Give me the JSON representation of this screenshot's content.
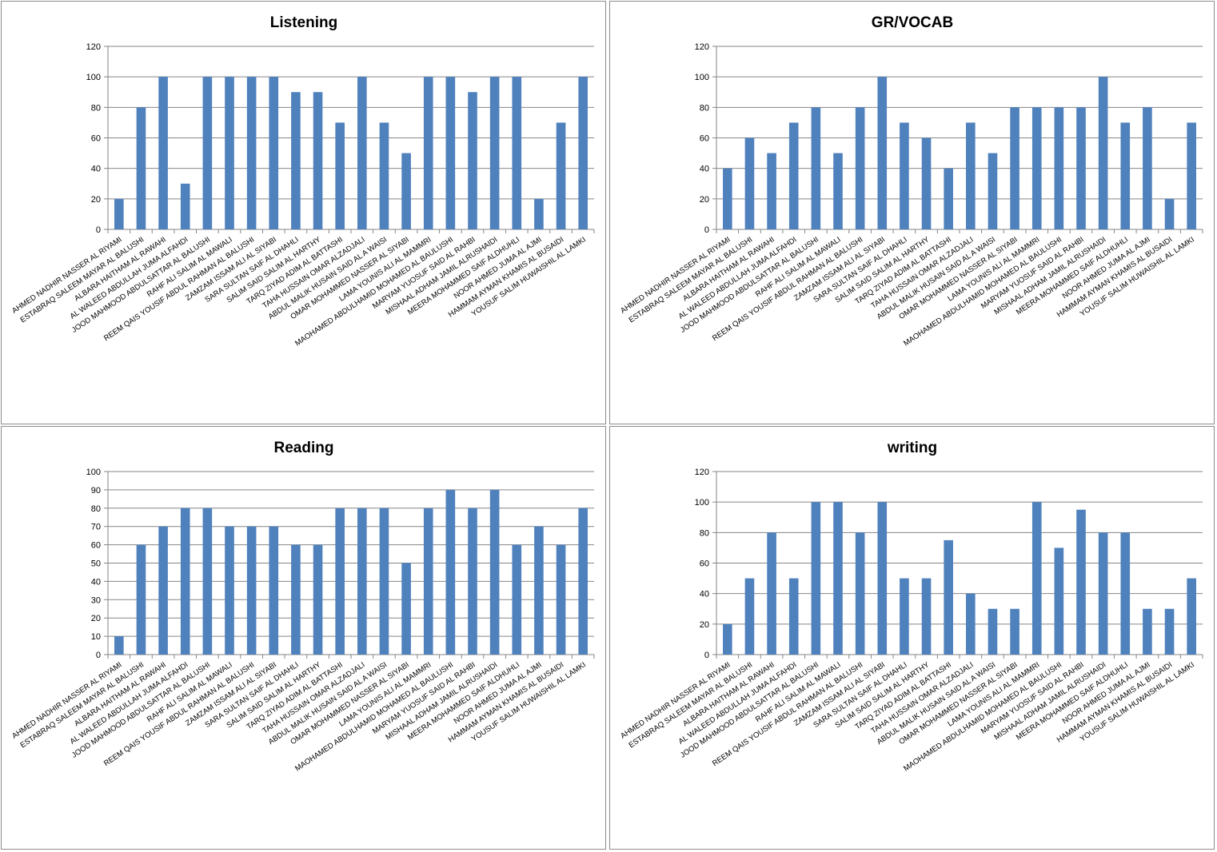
{
  "chart_data": [
    {
      "type": "bar",
      "title": "Listening",
      "ylim": [
        0,
        120
      ],
      "yticks": [
        0,
        20,
        40,
        60,
        80,
        100,
        120
      ],
      "grid": true,
      "color": "#4F81BD",
      "categories": [
        "AHMED NADHIR NASSER AL RIYAMI",
        "ESTABRAQ SALEEM MAYAR AL BALUSHI",
        "ALBARA HAITHAM AL RAWAHI",
        "AL WALEED ABDULLAH JUMA ALFAHDI",
        "JOOD MAHMOOD ABDULSATTAR AL BALUSHI",
        "RAHF ALI SALIM AL MAWALI",
        "REEM QAIS YOUSIF ABDUL RAHMAN AL BALUSHI",
        "ZAMZAM ISSAM ALI AL SIYABI",
        "SARA SULTAN SAIF AL DHAHLI",
        "SALIM SAID SALIM AL HARTHY",
        "TARQ ZIYAD ADIM AL BATTASHI",
        "TAHA HUSSAIN OMAR ALZADJALI",
        "ABDUL MALIK HUSAIN SAID AL A WAISI",
        "OMAR MOHAMMED NASSER AL SIYABI",
        "LAMA YOUNIS ALI AL MAMMRI",
        "MAOHAMED ABDULHAMID MOHAMED AL BAULUSHI",
        "MARYAM YUOSUF SAID AL RAHBI",
        "MISHAAL ADHAM JAMIL ALRUSHAIDI",
        "MEERA MOHAMMED SAIF ALDHUHLI",
        "NOOR AHMED JUMA AL AJMI",
        "HAMMAM AYMAN KHAMIS AL BUSAIDI",
        "YOUSUF SALIM HUWAISHIL AL LAMKI"
      ],
      "values": [
        20,
        80,
        100,
        30,
        100,
        100,
        100,
        100,
        90,
        90,
        70,
        100,
        70,
        50,
        100,
        100,
        90,
        100,
        100,
        20,
        70,
        100
      ]
    },
    {
      "type": "bar",
      "title": "GR/VOCAB",
      "ylim": [
        0,
        120
      ],
      "yticks": [
        0,
        20,
        40,
        60,
        80,
        100,
        120
      ],
      "grid": true,
      "color": "#4F81BD",
      "categories": [
        "AHMED NADHIR NASSER AL RIYAMI",
        "ESTABRAQ SALEEM MAYAR AL BALUSHI",
        "ALBARA HAITHAM AL RAWAHI",
        "AL WALEED ABDULLAH JUMA ALFAHDI",
        "JOOD MAHMOOD ABDULSATTAR AL BALUSHI",
        "RAHF ALI SALIM AL MAWALI",
        "REEM QAIS YOUSIF ABDUL RAHMAN AL BALUSHI",
        "ZAMZAM ISSAM ALI AL SIYABI",
        "SARA SULTAN SAIF AL DHAHLI",
        "SALIM SAID SALIM AL HARTHY",
        "TARQ ZIYAD ADIM AL BATTASHI",
        "TAHA HUSSAIN OMAR ALZADJALI",
        "ABDUL MALIK HUSAIN SAID AL A WAISI",
        "OMAR MOHAMMED NASSER AL SIYABI",
        "LAMA YOUNIS ALI AL MAMMRI",
        "MAOHAMED ABDULHAMID MOHAMED AL BAULUSHI",
        "MARYAM YUOSUF SAID AL RAHBI",
        "MISHAAL ADHAM JAMIL ALRUSHAIDI",
        "MEERA MOHAMMED SAIF ALDHUHLI",
        "NOOR AHMED JUMA AL AJMI",
        "HAMMAM AYMAN KHAMIS AL BUSAIDI",
        "YOUSUF SALIM HUWAISHIL AL LAMKI"
      ],
      "values": [
        40,
        60,
        50,
        70,
        80,
        50,
        80,
        100,
        70,
        60,
        40,
        70,
        50,
        80,
        80,
        80,
        80,
        100,
        70,
        80,
        20,
        70
      ]
    },
    {
      "type": "bar",
      "title": "Reading",
      "ylim": [
        0,
        100
      ],
      "yticks": [
        0,
        10,
        20,
        30,
        40,
        50,
        60,
        70,
        80,
        90,
        100
      ],
      "grid": true,
      "color": "#4F81BD",
      "categories": [
        "AHMED NADHIR NASSER AL RIYAMI",
        "ESTABRAQ SALEEM MAYAR AL BALUSHI",
        "ALBARA HAITHAM AL RAWAHI",
        "AL WALEED ABDULLAH JUMA ALFAHDI",
        "JOOD MAHMOOD ABDULSATTAR AL BALUSHI",
        "RAHF ALI SALIM AL MAWALI",
        "REEM QAIS YOUSIF ABDUL RAHMAN AL BALUSHI",
        "ZAMZAM ISSAM ALI AL SIYABI",
        "SARA SULTAN SAIF AL DHAHLI",
        "SALIM SAID SALIM AL HARTHY",
        "TARQ ZIYAD ADIM AL BATTASHI",
        "TAHA HUSSAIN OMAR ALZADJALI",
        "ABDUL MALIK HUSAIN SAID AL A WAISI",
        "OMAR MOHAMMED NASSER AL SIYABI",
        "LAMA YOUNIS ALI AL MAMMRI",
        "MAOHAMED ABDULHAMID MOHAMED AL BAULUSHI",
        "MARYAM YUOSUF SAID AL RAHBI",
        "MISHAAL ADHAM JAMIL ALRUSHAIDI",
        "MEERA MOHAMMED SAIF ALDHUHLI",
        "NOOR AHMED JUMA AL AJMI",
        "HAMMAM AYMAN KHAMIS AL BUSAIDI",
        "YOUSUF SALIM HUWAISHIL AL LAMKI"
      ],
      "values": [
        10,
        60,
        70,
        80,
        80,
        70,
        70,
        70,
        60,
        60,
        80,
        80,
        80,
        50,
        80,
        90,
        80,
        90,
        60,
        70,
        60,
        80
      ]
    },
    {
      "type": "bar",
      "title": "writing",
      "ylim": [
        0,
        120
      ],
      "yticks": [
        0,
        20,
        40,
        60,
        80,
        100,
        120
      ],
      "grid": true,
      "color": "#4F81BD",
      "categories": [
        "AHMED NADHIR NASSER AL RIYAMI",
        "ESTABRAQ SALEEM MAYAR AL BALUSHI",
        "ALBARA HAITHAM AL RAWAHI",
        "AL WALEED ABDULLAH JUMA ALFAHDI",
        "JOOD MAHMOOD ABDULSATTAR AL BALUSHI",
        "RAHF ALI SALIM AL MAWALI",
        "REEM QAIS YOUSIF ABDUL RAHMAN AL BALUSHI",
        "ZAMZAM ISSAM ALI AL SIYABI",
        "SARA SULTAN SAIF AL DHAHLI",
        "SALIM SAID SALIM AL HARTHY",
        "TARQ ZIYAD ADIM AL BATTASHI",
        "TAHA HUSSAIN OMAR ALZADJALI",
        "ABDUL MALIK HUSAIN SAID AL A WAISI",
        "OMAR MOHAMMED NASSER AL SIYABI",
        "LAMA YOUNIS ALI AL MAMMRI",
        "MAOHAMED ABDULHAMID MOHAMED AL BAULUSHI",
        "MARYAM YUOSUF SAID AL RAHBI",
        "MISHAAL ADHAM JAMIL ALRUSHAIDI",
        "MEERA MOHAMMED SAIF ALDHUHLI",
        "NOOR AHMED JUMA AL AJMI",
        "HAMMAM AYMAN KHAMIS AL BUSAIDI",
        "YOUSUF SALIM HUWAISHIL AL LAMKI"
      ],
      "values": [
        20,
        50,
        80,
        50,
        100,
        100,
        80,
        100,
        50,
        50,
        75,
        40,
        30,
        30,
        100,
        70,
        95,
        80,
        80,
        30,
        30,
        50
      ]
    }
  ]
}
